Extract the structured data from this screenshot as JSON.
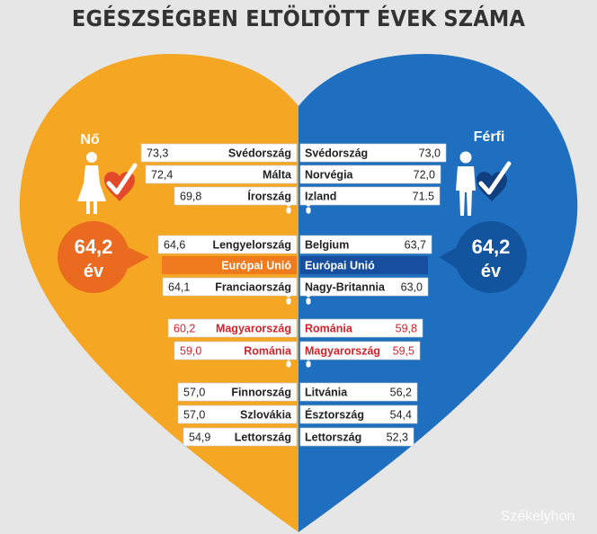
{
  "title": "EGÉSZSÉGBEN ELTÖLTÖTT ÉVEK SZÁMA",
  "colors": {
    "female_side": "#f5a623",
    "male_side": "#1f6fc0",
    "avg_female": "#ea6a1f",
    "avg_male": "#13549f",
    "eu_female_bar": "#f07a1e",
    "eu_male_bar": "#174f9e",
    "highlight_red": "#d2232a",
    "text_dark": "#222222",
    "background": "#e6e6e6"
  },
  "watermark": "Székelyhon",
  "chart_data": {
    "type": "table",
    "female": {
      "label": "Nő",
      "icon": "female-with-heart-check-icon",
      "average_value": "64,2",
      "average_unit": "év",
      "rows": [
        {
          "country": "Svédország",
          "value": "73,3"
        },
        {
          "country": "Málta",
          "value": "72,4"
        },
        {
          "country": "Írország",
          "value": "69,8"
        },
        {
          "country": "Lengyelország",
          "value": "64,6"
        },
        {
          "country": "Európai Unió",
          "value": "",
          "eu": true
        },
        {
          "country": "Franciaország",
          "value": "64,1"
        },
        {
          "country": "Magyarország",
          "value": "60,2",
          "highlight": true
        },
        {
          "country": "Románia",
          "value": "59,0",
          "highlight": true
        },
        {
          "country": "Finnország",
          "value": "57,0"
        },
        {
          "country": "Szlovákia",
          "value": "57,0"
        },
        {
          "country": "Lettország",
          "value": "54,9"
        }
      ]
    },
    "male": {
      "label": "Férfi",
      "icon": "male-with-heart-check-icon",
      "average_value": "64,2",
      "average_unit": "év",
      "rows": [
        {
          "country": "Svédország",
          "value": "73,0"
        },
        {
          "country": "Norvégia",
          "value": "72,0"
        },
        {
          "country": "Izland",
          "value": "71.5"
        },
        {
          "country": "Belgium",
          "value": "63,7"
        },
        {
          "country": "Európai Unió",
          "value": "",
          "eu": true
        },
        {
          "country": "Nagy-Britannia",
          "value": "63,0"
        },
        {
          "country": "Románia",
          "value": "59,8",
          "highlight": true
        },
        {
          "country": "Magyarország",
          "value": "59,5",
          "highlight": true
        },
        {
          "country": "Litvánia",
          "value": "56,2"
        },
        {
          "country": "Észtország",
          "value": "54,4"
        },
        {
          "country": "Lettország",
          "value": "52,3"
        }
      ]
    }
  }
}
